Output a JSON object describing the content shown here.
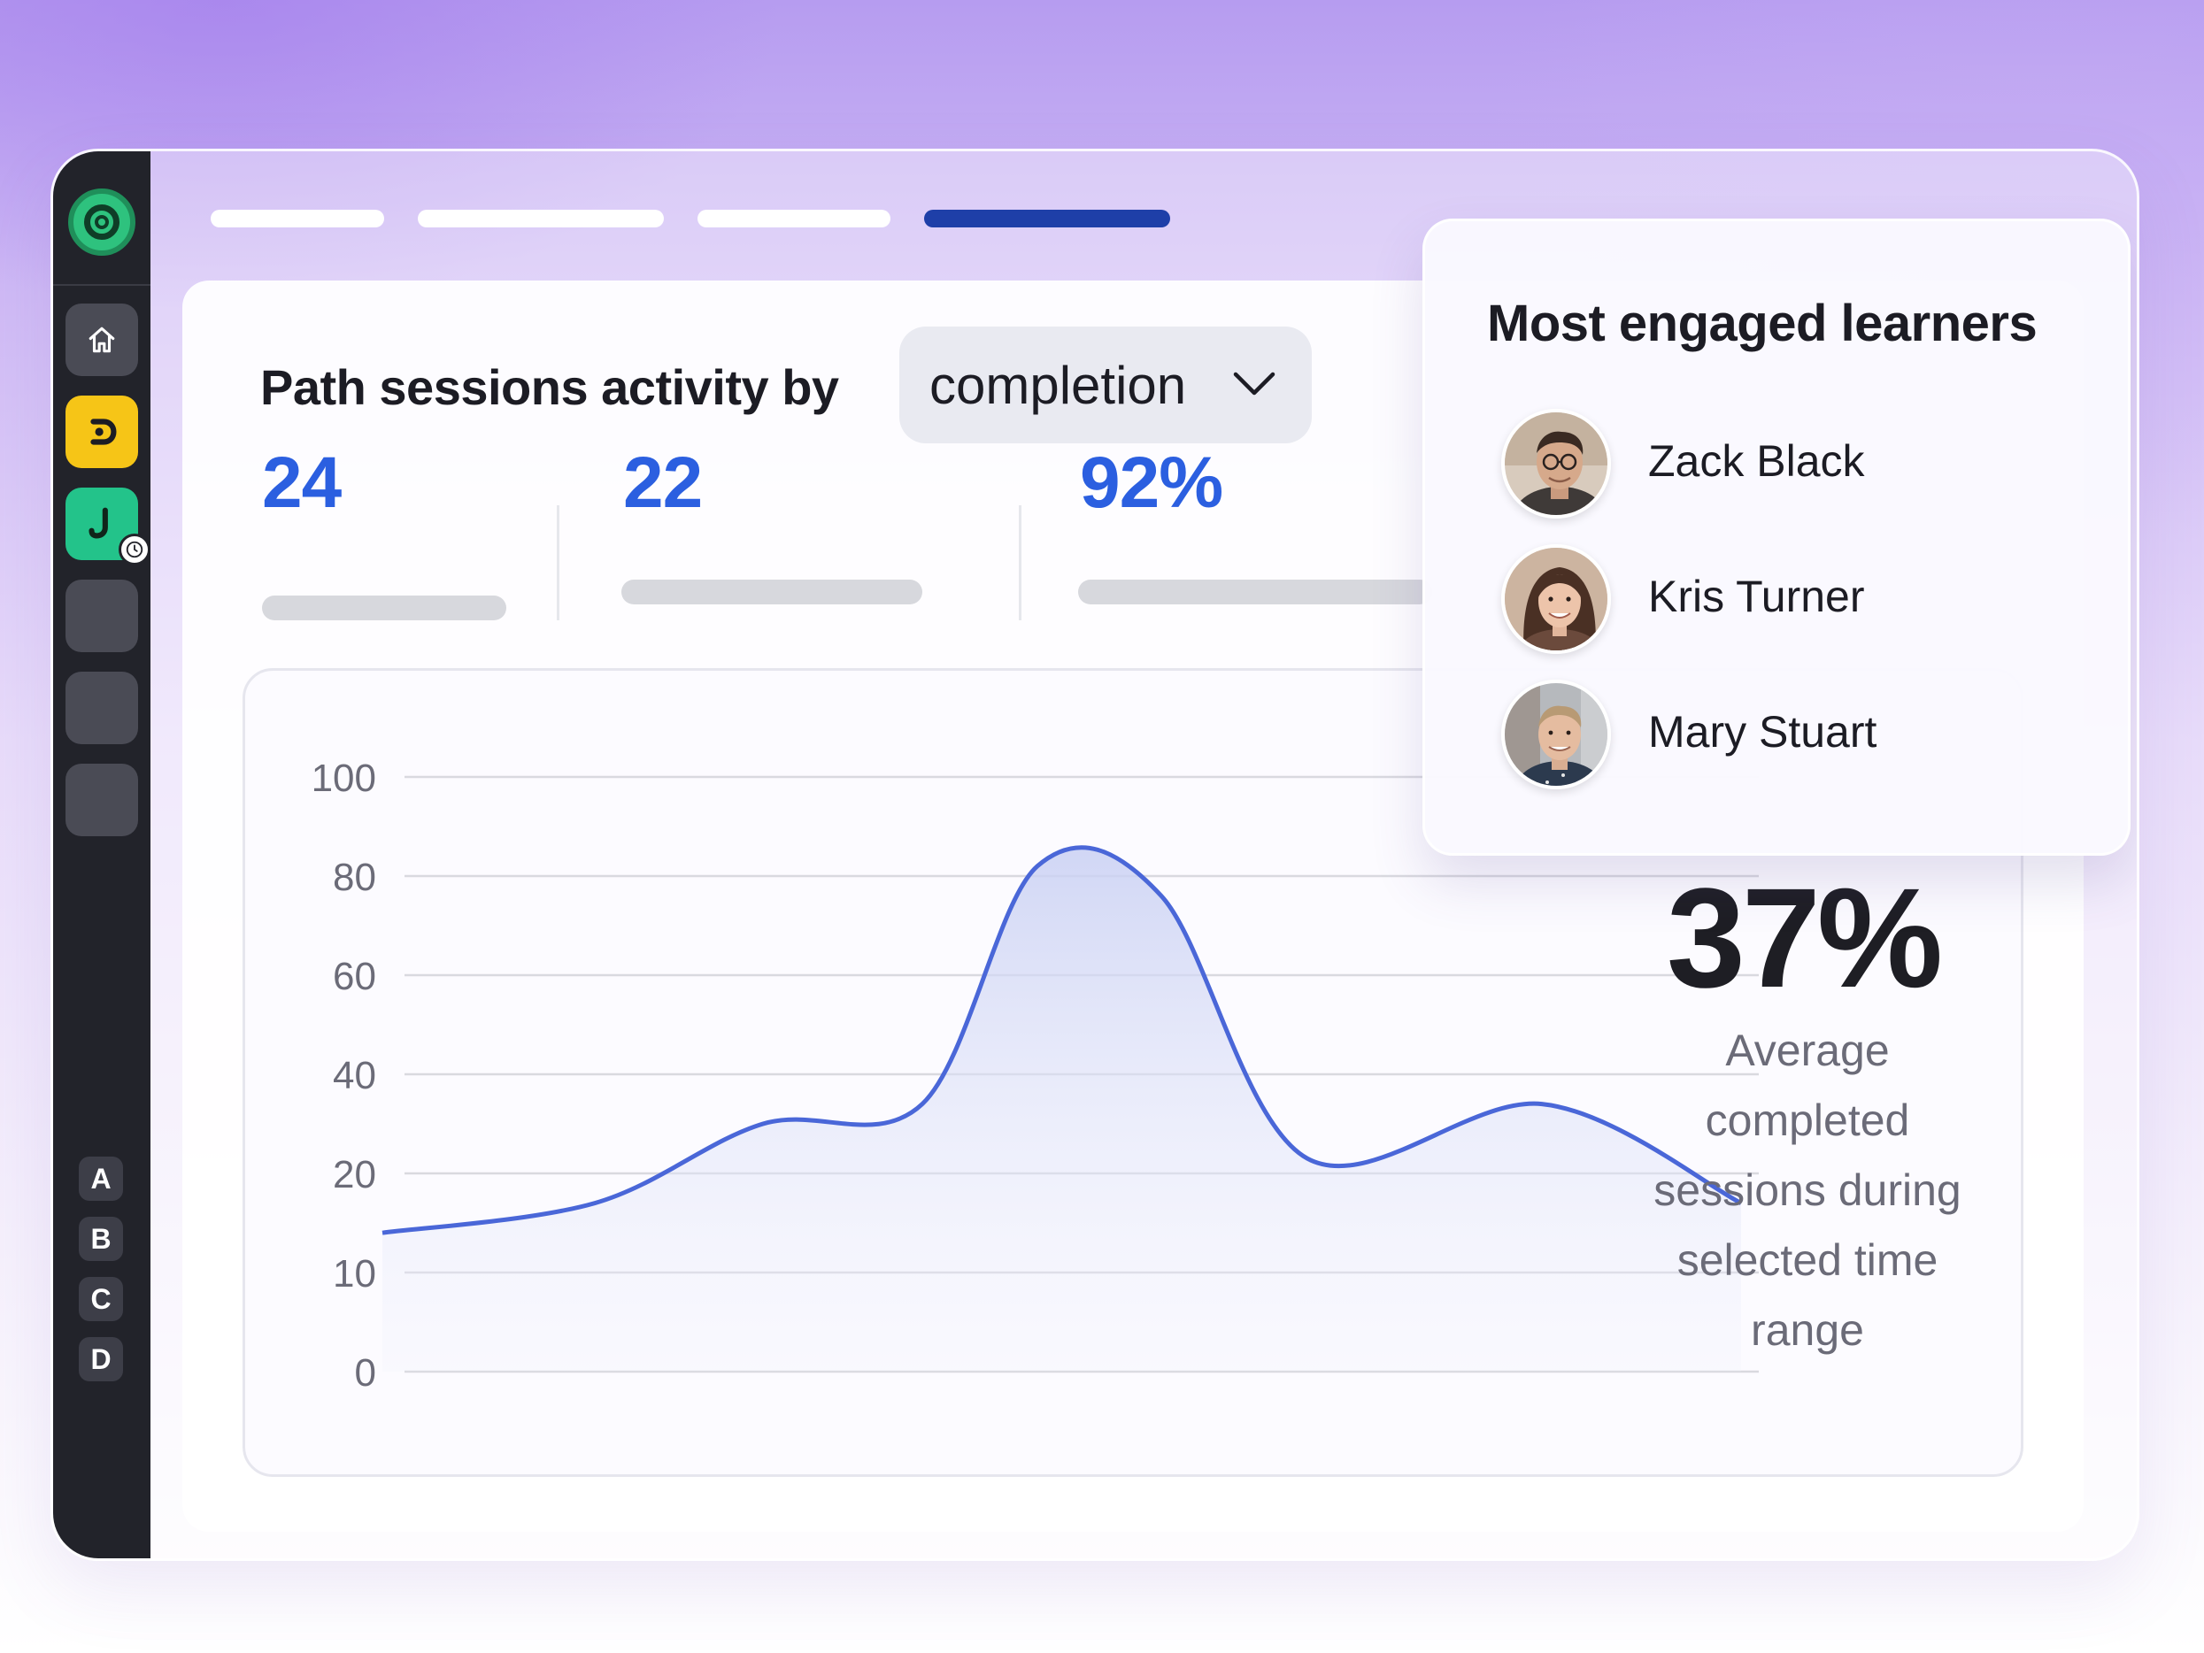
{
  "nav": {
    "tabs": [
      "",
      "",
      "",
      ""
    ],
    "active_tab_index": 3,
    "rail_letters": [
      "A",
      "B",
      "C",
      "D"
    ]
  },
  "report": {
    "heading": "Path sessions activity by",
    "metric_select": {
      "selected": "completion"
    },
    "stats": [
      "24",
      "22",
      "92%"
    ],
    "summary": {
      "value": "37%",
      "caption_lines": [
        "Average",
        "completed",
        "sessions during",
        "selected time",
        "range"
      ]
    }
  },
  "learners": {
    "title": "Most engaged learners",
    "items": [
      {
        "name": "Zack Black"
      },
      {
        "name": "Kris Turner"
      },
      {
        "name": "Mary Stuart"
      }
    ]
  },
  "colors": {
    "accent_blue": "#2b5fe0",
    "active_tab": "#1e3fa8",
    "line": "#4a67d8",
    "rail_bg": "#22232a",
    "yellow_app": "#f6c517",
    "green_app": "#23c38a"
  },
  "chart_data": {
    "type": "area",
    "y_tick_labels": [
      "100",
      "80",
      "60",
      "40",
      "20",
      "10",
      "0"
    ],
    "ylim": [
      0,
      100
    ],
    "grid": true,
    "series": [
      {
        "values": [
          14,
          17,
          30,
          34,
          82,
          76,
          23,
          34,
          17
        ]
      }
    ]
  }
}
